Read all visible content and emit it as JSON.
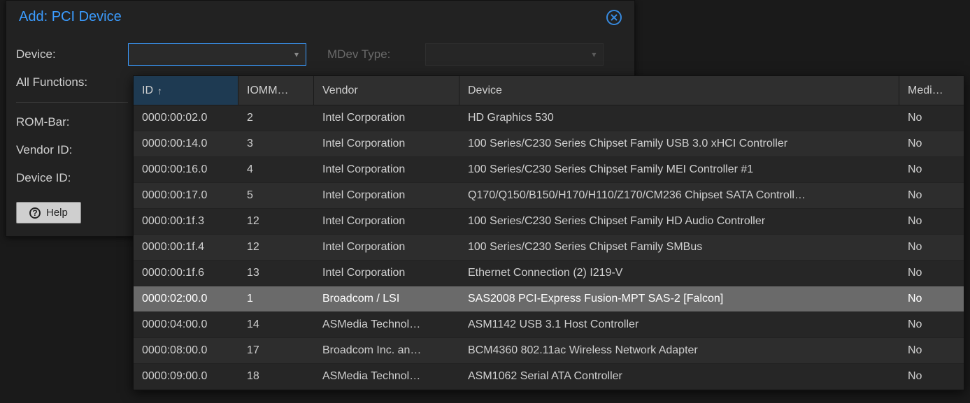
{
  "dialog": {
    "title": "Add: PCI Device",
    "labels": {
      "device": "Device:",
      "all_functions": "All Functions:",
      "rom_bar": "ROM-Bar:",
      "vendor_id": "Vendor ID:",
      "device_id": "Device ID:",
      "mdev_type": "MDev Type:"
    },
    "help_button": "Help"
  },
  "dropdown": {
    "columns": {
      "id": "ID",
      "iommu": "IOMM…",
      "vendor": "Vendor",
      "device": "Device",
      "medi": "Medi…"
    },
    "sort_column": "id",
    "sort_dir": "asc",
    "highlighted_index": 7,
    "rows": [
      {
        "id": "0000:00:02.0",
        "iommu": "2",
        "vendor": "Intel Corporation",
        "device": "HD Graphics 530",
        "medi": "No"
      },
      {
        "id": "0000:00:14.0",
        "iommu": "3",
        "vendor": "Intel Corporation",
        "device": "100 Series/C230 Series Chipset Family USB 3.0 xHCI Controller",
        "medi": "No"
      },
      {
        "id": "0000:00:16.0",
        "iommu": "4",
        "vendor": "Intel Corporation",
        "device": "100 Series/C230 Series Chipset Family MEI Controller #1",
        "medi": "No"
      },
      {
        "id": "0000:00:17.0",
        "iommu": "5",
        "vendor": "Intel Corporation",
        "device": "Q170/Q150/B150/H170/H110/Z170/CM236 Chipset SATA Controll…",
        "medi": "No"
      },
      {
        "id": "0000:00:1f.3",
        "iommu": "12",
        "vendor": "Intel Corporation",
        "device": "100 Series/C230 Series Chipset Family HD Audio Controller",
        "medi": "No"
      },
      {
        "id": "0000:00:1f.4",
        "iommu": "12",
        "vendor": "Intel Corporation",
        "device": "100 Series/C230 Series Chipset Family SMBus",
        "medi": "No"
      },
      {
        "id": "0000:00:1f.6",
        "iommu": "13",
        "vendor": "Intel Corporation",
        "device": "Ethernet Connection (2) I219-V",
        "medi": "No"
      },
      {
        "id": "0000:02:00.0",
        "iommu": "1",
        "vendor": "Broadcom / LSI",
        "device": "SAS2008 PCI-Express Fusion-MPT SAS-2 [Falcon]",
        "medi": "No"
      },
      {
        "id": "0000:04:00.0",
        "iommu": "14",
        "vendor": "ASMedia Technol…",
        "device": "ASM1142 USB 3.1 Host Controller",
        "medi": "No"
      },
      {
        "id": "0000:08:00.0",
        "iommu": "17",
        "vendor": "Broadcom Inc. an…",
        "device": "BCM4360 802.11ac Wireless Network Adapter",
        "medi": "No"
      },
      {
        "id": "0000:09:00.0",
        "iommu": "18",
        "vendor": "ASMedia Technol…",
        "device": "ASM1062 Serial ATA Controller",
        "medi": "No"
      }
    ]
  },
  "colors": {
    "accent": "#3b9cff",
    "dialog_bg": "#222222",
    "dropdown_bg": "#2a2a2a",
    "row_odd": "#262626",
    "row_even": "#2d2d2d",
    "row_highlight": "#6a6a6a",
    "header_sorted_bg": "#1e3a52",
    "text": "#cfcfcf"
  }
}
